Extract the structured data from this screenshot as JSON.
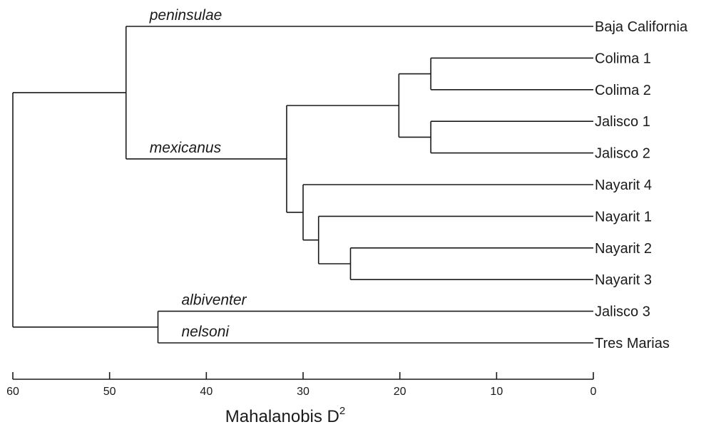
{
  "axis": {
    "title": "Mahalanobis D",
    "title_superscript": "2",
    "ticks": [
      60,
      50,
      40,
      30,
      20,
      10,
      0
    ],
    "range": [
      60,
      0
    ]
  },
  "leaves": [
    "Baja California",
    "Colima 1",
    "Colima 2",
    "Jalisco 1",
    "Jalisco 2",
    "Nayarit 4",
    "Nayarit 1",
    "Nayarit 2",
    "Nayarit 3",
    "Jalisco 3",
    "Tres Marias"
  ],
  "clade_labels": [
    {
      "text": "peninsulae",
      "leaf": "Baja California"
    },
    {
      "text": "mexicanus",
      "node": "mexicanus"
    },
    {
      "text": "albiventer",
      "leaf": "Jalisco 3"
    },
    {
      "text": "nelsoni",
      "leaf": "Tres Marias"
    }
  ],
  "nodes": [
    {
      "id": "colima",
      "height": 16.8,
      "children": [
        "Colima 1",
        "Colima 2"
      ]
    },
    {
      "id": "jalisco12",
      "height": 16.8,
      "children": [
        "Jalisco 1",
        "Jalisco 2"
      ]
    },
    {
      "id": "colima_jalisco",
      "height": 20.1,
      "children": [
        "colima",
        "jalisco12"
      ]
    },
    {
      "id": "nayarit23",
      "height": 25.1,
      "children": [
        "Nayarit 2",
        "Nayarit 3"
      ]
    },
    {
      "id": "nayarit123",
      "height": 28.4,
      "children": [
        "Nayarit 1",
        "nayarit23"
      ]
    },
    {
      "id": "nayarit_all",
      "height": 30.0,
      "children": [
        "Nayarit 4",
        "nayarit123"
      ]
    },
    {
      "id": "mexicanus",
      "height": 31.7,
      "children": [
        "colima_jalisco",
        "nayarit_all"
      ]
    },
    {
      "id": "mainland",
      "height": 48.3,
      "children": [
        "Baja California",
        "mexicanus"
      ]
    },
    {
      "id": "southern",
      "height": 45.0,
      "children": [
        "Jalisco 3",
        "Tres Marias"
      ]
    },
    {
      "id": "root",
      "height": 60.0,
      "children": [
        "mainland",
        "southern"
      ]
    }
  ]
}
